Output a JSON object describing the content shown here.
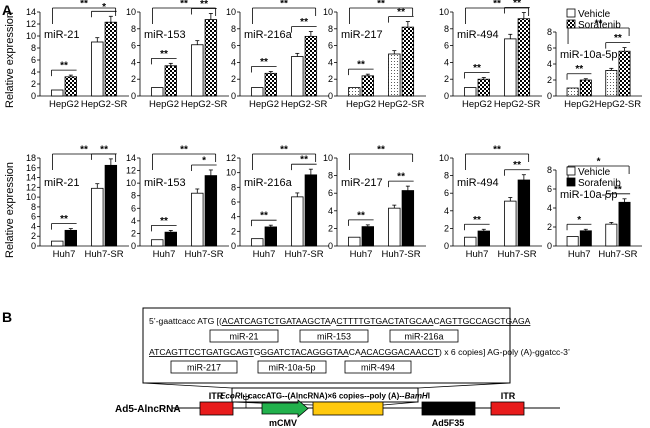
{
  "panel_a_label": "A",
  "panel_b_label": "B",
  "ylabel": "Relative expression",
  "sig": "**",
  "sig_single": "*",
  "legend": {
    "vehicle": "Vehicle",
    "sorafenib": "Sorafenib"
  },
  "chart_data": [
    {
      "type": "bar",
      "title": "miR-21",
      "categories": [
        "HepG2",
        "HepG2-SR"
      ],
      "ylim": [
        0,
        14
      ],
      "yticks": [
        0,
        2,
        4,
        6,
        8,
        10,
        12,
        14
      ],
      "series": [
        {
          "name": "Vehicle",
          "values": [
            1.0,
            9.0
          ]
        },
        {
          "name": "Sorafenib",
          "values": [
            3.2,
            12.3
          ]
        }
      ],
      "sig": {
        "inner": [
          "**",
          "*"
        ],
        "outer": "**"
      }
    },
    {
      "type": "bar",
      "title": "miR-153",
      "categories": [
        "HepG2",
        "HepG2-SR"
      ],
      "ylim": [
        0,
        10
      ],
      "yticks": [
        0,
        2,
        4,
        6,
        8,
        10
      ],
      "series": [
        {
          "name": "Vehicle",
          "values": [
            1.0,
            6.1
          ]
        },
        {
          "name": "Sorafenib",
          "values": [
            3.6,
            9.1
          ]
        }
      ],
      "sig": {
        "inner": [
          "**",
          "**"
        ],
        "outer": "**"
      }
    },
    {
      "type": "bar",
      "title": "miR-216a",
      "categories": [
        "HepG2",
        "HepG2-SR"
      ],
      "ylim": [
        0,
        10
      ],
      "yticks": [
        0,
        2,
        4,
        6,
        8,
        10
      ],
      "series": [
        {
          "name": "Vehicle",
          "values": [
            1.0,
            4.7
          ]
        },
        {
          "name": "Sorafenib",
          "values": [
            2.7,
            7.1
          ]
        }
      ],
      "sig": {
        "inner": [
          "**",
          "**"
        ],
        "outer": "**"
      }
    },
    {
      "type": "bar",
      "title": "miR-217",
      "categories": [
        "HepG2",
        "HepG2-SR"
      ],
      "ylim": [
        0,
        10
      ],
      "yticks": [
        0,
        2,
        4,
        6,
        8,
        10
      ],
      "series": [
        {
          "name": "Vehicle",
          "values": [
            1.0,
            5.0
          ]
        },
        {
          "name": "Sorafenib",
          "values": [
            2.4,
            8.2
          ]
        }
      ],
      "sig": {
        "inner": [
          "**",
          "**"
        ],
        "outer": "**"
      }
    },
    {
      "type": "bar",
      "title": "miR-494",
      "categories": [
        "HepG2",
        "HepG2-SR"
      ],
      "ylim": [
        0,
        10
      ],
      "yticks": [
        0,
        2,
        4,
        6,
        8,
        10
      ],
      "series": [
        {
          "name": "Vehicle",
          "values": [
            1.0,
            6.8
          ]
        },
        {
          "name": "Sorafenib",
          "values": [
            2.0,
            9.2
          ]
        }
      ],
      "sig": {
        "inner": [
          "**",
          "**"
        ],
        "outer": "**"
      }
    },
    {
      "type": "bar",
      "title": "miR-10a-5p",
      "categories": [
        "HepG2",
        "HepG2-SR"
      ],
      "ylim": [
        0,
        8
      ],
      "yticks": [
        0,
        2,
        4,
        6,
        8
      ],
      "series": [
        {
          "name": "Vehicle",
          "values": [
            1.0,
            3.2
          ]
        },
        {
          "name": "Sorafenib",
          "values": [
            2.0,
            5.6
          ]
        }
      ],
      "sig": {
        "inner": [
          "**",
          "**"
        ],
        "outer": "**"
      }
    },
    {
      "type": "bar",
      "title": "miR-21",
      "categories": [
        "Huh7",
        "Huh7-SR"
      ],
      "ylim": [
        0,
        18
      ],
      "yticks": [
        0,
        2,
        4,
        6,
        8,
        10,
        12,
        14,
        16,
        18
      ],
      "series": [
        {
          "name": "Vehicle",
          "values": [
            1.0,
            11.8
          ]
        },
        {
          "name": "Sorafenib",
          "values": [
            3.2,
            16.5
          ]
        }
      ],
      "sig": {
        "inner": [
          "**",
          "**"
        ],
        "outer": "**"
      }
    },
    {
      "type": "bar",
      "title": "miR-153",
      "categories": [
        "Huh7",
        "Huh7-SR"
      ],
      "ylim": [
        0,
        14
      ],
      "yticks": [
        0,
        2,
        4,
        6,
        8,
        10,
        12,
        14
      ],
      "series": [
        {
          "name": "Vehicle",
          "values": [
            1.0,
            8.4
          ]
        },
        {
          "name": "Sorafenib",
          "values": [
            2.2,
            11.2
          ]
        }
      ],
      "sig": {
        "inner": [
          "**",
          "*"
        ],
        "outer": "**"
      }
    },
    {
      "type": "bar",
      "title": "miR-216a",
      "categories": [
        "Huh7",
        "Huh7-SR"
      ],
      "ylim": [
        0,
        12
      ],
      "yticks": [
        0,
        2,
        4,
        6,
        8,
        10,
        12
      ],
      "series": [
        {
          "name": "Vehicle",
          "values": [
            1.0,
            6.7
          ]
        },
        {
          "name": "Sorafenib",
          "values": [
            2.6,
            9.7
          ]
        }
      ],
      "sig": {
        "inner": [
          "**",
          "**"
        ],
        "outer": "**"
      }
    },
    {
      "type": "bar",
      "title": "miR-217",
      "categories": [
        "Huh7",
        "Huh7-SR"
      ],
      "ylim": [
        0,
        10
      ],
      "yticks": [
        0,
        2,
        4,
        6,
        8,
        10
      ],
      "series": [
        {
          "name": "Vehicle",
          "values": [
            1.0,
            4.3
          ]
        },
        {
          "name": "Sorafenib",
          "values": [
            2.2,
            6.3
          ]
        }
      ],
      "sig": {
        "inner": [
          "**",
          "**"
        ],
        "outer": "**"
      }
    },
    {
      "type": "bar",
      "title": "miR-494",
      "categories": [
        "Huh7",
        "Huh7-SR"
      ],
      "ylim": [
        0,
        10
      ],
      "yticks": [
        0,
        2,
        4,
        6,
        8,
        10
      ],
      "series": [
        {
          "name": "Vehicle",
          "values": [
            1.0,
            5.1
          ]
        },
        {
          "name": "Sorafenib",
          "values": [
            1.7,
            7.5
          ]
        }
      ],
      "sig": {
        "inner": [
          "**",
          "**"
        ],
        "outer": "**"
      }
    },
    {
      "type": "bar",
      "title": "miR-10a-5p",
      "categories": [
        "Huh7",
        "Huh7-SR"
      ],
      "ylim": [
        0,
        8
      ],
      "yticks": [
        0,
        2,
        4,
        6,
        8
      ],
      "series": [
        {
          "name": "Vehicle",
          "values": [
            1.0,
            2.3
          ]
        },
        {
          "name": "Sorafenib",
          "values": [
            1.6,
            4.6
          ]
        }
      ],
      "sig": {
        "inner": [
          "*",
          "**"
        ],
        "outer": "*"
      }
    }
  ],
  "construct": {
    "seq_line1_prefix": "5’-gaattcacc ATG [(",
    "seq_line1_u1": "ACATCAGTCTGATAAGCTA",
    "seq_line1_s1": "A",
    "seq_line1_u2": "CTTTTGTGACTATGCAA",
    "seq_line1_s2": "C",
    "seq_line1_u3": "AGTTGCCAGCTGAGA",
    "seq_line2_u1": "ATCAGTTCCTGATGCAGT",
    "seq_line2_s1": "G",
    "seq_line2_u2": "GGATCTACAGGGTAA",
    "seq_line2_s2": "CA",
    "seq_line2_u3": "ACACGGACAACCT",
    "seq_line2_suffix": ") x 6 copies] AG-poly (A)-ggatcc-3’",
    "mirnas_top": [
      "miR-21",
      "miR-153",
      "miR-216a"
    ],
    "mirnas_bottom": [
      "miR-217",
      "miR-10a-5p",
      "miR-494"
    ],
    "cassette_ecori": "EcoR",
    "cassette_i1": "I",
    "cassette_mid": "--caccATG--(AlncRNA)×6 copies--poly (A)--",
    "cassette_bamh": "BamH",
    "cassette_i2": "I",
    "vector_name": "Ad5-AlncRNA",
    "itr_left": "ITR",
    "itr_right": "ITR",
    "psi": "ψ",
    "mcmv": "mCMV",
    "ad5f35": "Ad5F35"
  },
  "colors": {
    "vehicle": "#ffffff",
    "sorafenib": "#000000",
    "itr": "#e81c1c",
    "mcmv": "#22b14c",
    "alncrna": "#ffc90e",
    "ad5f35": "#000000"
  }
}
